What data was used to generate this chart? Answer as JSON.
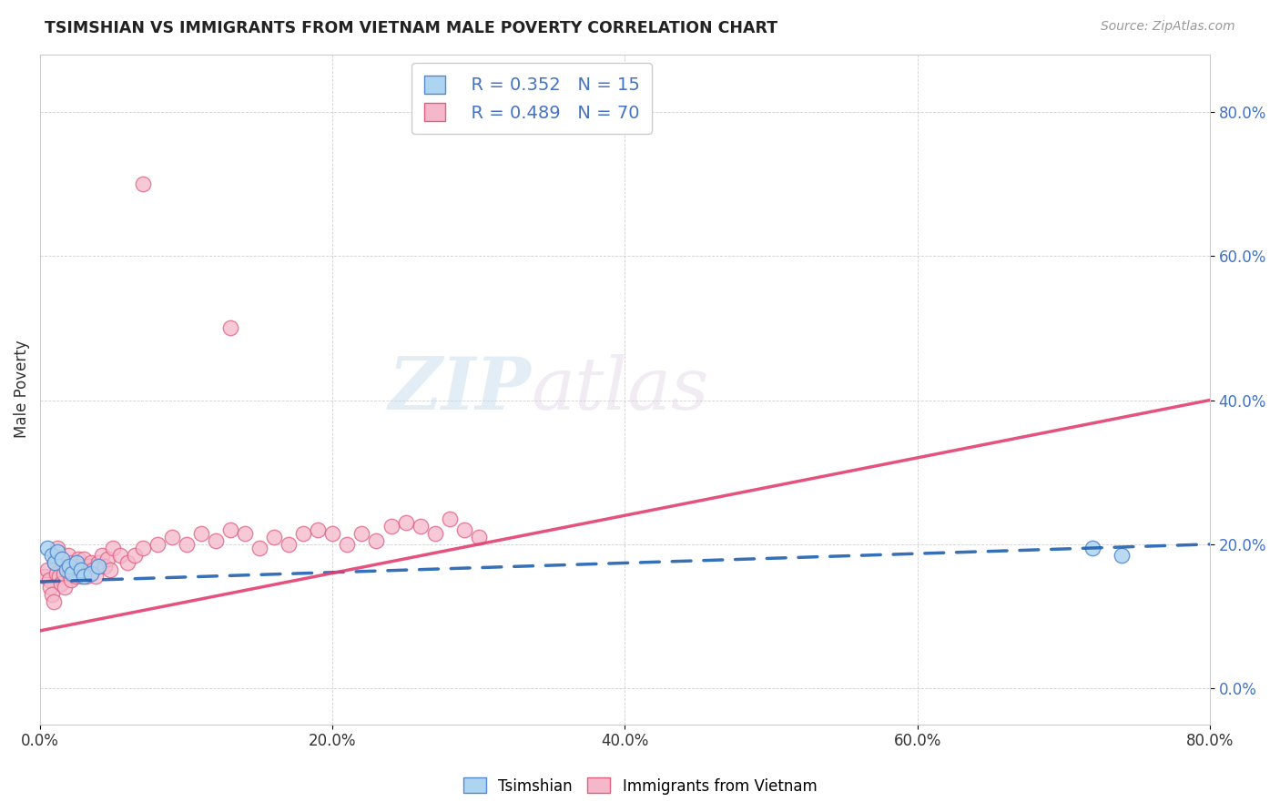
{
  "title": "TSIMSHIAN VS IMMIGRANTS FROM VIETNAM MALE POVERTY CORRELATION CHART",
  "source": "Source: ZipAtlas.com",
  "ylabel": "Male Poverty",
  "xlim": [
    0,
    0.8
  ],
  "ylim": [
    -0.05,
    0.88
  ],
  "ytick_values": [
    0.0,
    0.2,
    0.4,
    0.6,
    0.8
  ],
  "xtick_values": [
    0.0,
    0.2,
    0.4,
    0.6,
    0.8
  ],
  "watermark_zip": "ZIP",
  "watermark_atlas": "atlas",
  "legend_r1": "R = 0.352",
  "legend_n1": "N = 15",
  "legend_r2": "R = 0.489",
  "legend_n2": "N = 70",
  "tsimshian_color": "#add4f0",
  "vietnam_color": "#f5b8cb",
  "tsimshian_edge_color": "#5588cc",
  "vietnam_edge_color": "#e06080",
  "tsimshian_line_color": "#2060b0",
  "vietnam_line_color": "#e04070",
  "tsimshian_x": [
    0.005,
    0.008,
    0.01,
    0.012,
    0.015,
    0.018,
    0.02,
    0.022,
    0.025,
    0.028,
    0.03,
    0.035,
    0.04,
    0.72,
    0.74
  ],
  "tsimshian_y": [
    0.195,
    0.185,
    0.175,
    0.19,
    0.18,
    0.165,
    0.17,
    0.16,
    0.175,
    0.165,
    0.155,
    0.16,
    0.17,
    0.195,
    0.185
  ],
  "vietnam_x": [
    0.003,
    0.005,
    0.006,
    0.007,
    0.008,
    0.009,
    0.01,
    0.01,
    0.011,
    0.012,
    0.013,
    0.014,
    0.015,
    0.016,
    0.017,
    0.018,
    0.019,
    0.02,
    0.021,
    0.022,
    0.023,
    0.024,
    0.025,
    0.026,
    0.027,
    0.028,
    0.029,
    0.03,
    0.031,
    0.032,
    0.033,
    0.034,
    0.035,
    0.036,
    0.038,
    0.04,
    0.042,
    0.044,
    0.046,
    0.048,
    0.05,
    0.055,
    0.06,
    0.065,
    0.07,
    0.08,
    0.09,
    0.1,
    0.11,
    0.12,
    0.13,
    0.14,
    0.15,
    0.16,
    0.17,
    0.18,
    0.19,
    0.2,
    0.21,
    0.22,
    0.23,
    0.24,
    0.25,
    0.26,
    0.27,
    0.28,
    0.29,
    0.3,
    0.07,
    0.13
  ],
  "vietnam_y": [
    0.155,
    0.165,
    0.15,
    0.14,
    0.13,
    0.12,
    0.175,
    0.185,
    0.16,
    0.195,
    0.155,
    0.145,
    0.175,
    0.16,
    0.14,
    0.17,
    0.185,
    0.16,
    0.15,
    0.175,
    0.165,
    0.155,
    0.17,
    0.18,
    0.165,
    0.155,
    0.17,
    0.18,
    0.165,
    0.155,
    0.17,
    0.16,
    0.175,
    0.165,
    0.155,
    0.175,
    0.185,
    0.17,
    0.18,
    0.165,
    0.195,
    0.185,
    0.175,
    0.185,
    0.195,
    0.2,
    0.21,
    0.2,
    0.215,
    0.205,
    0.22,
    0.215,
    0.195,
    0.21,
    0.2,
    0.215,
    0.22,
    0.215,
    0.2,
    0.215,
    0.205,
    0.225,
    0.23,
    0.225,
    0.215,
    0.235,
    0.22,
    0.21,
    0.7,
    0.5
  ],
  "tsimshian_line_x": [
    0.0,
    0.8
  ],
  "tsimshian_line_y": [
    0.148,
    0.2
  ],
  "vietnam_line_x": [
    0.0,
    0.8
  ],
  "vietnam_line_y": [
    0.08,
    0.4
  ]
}
